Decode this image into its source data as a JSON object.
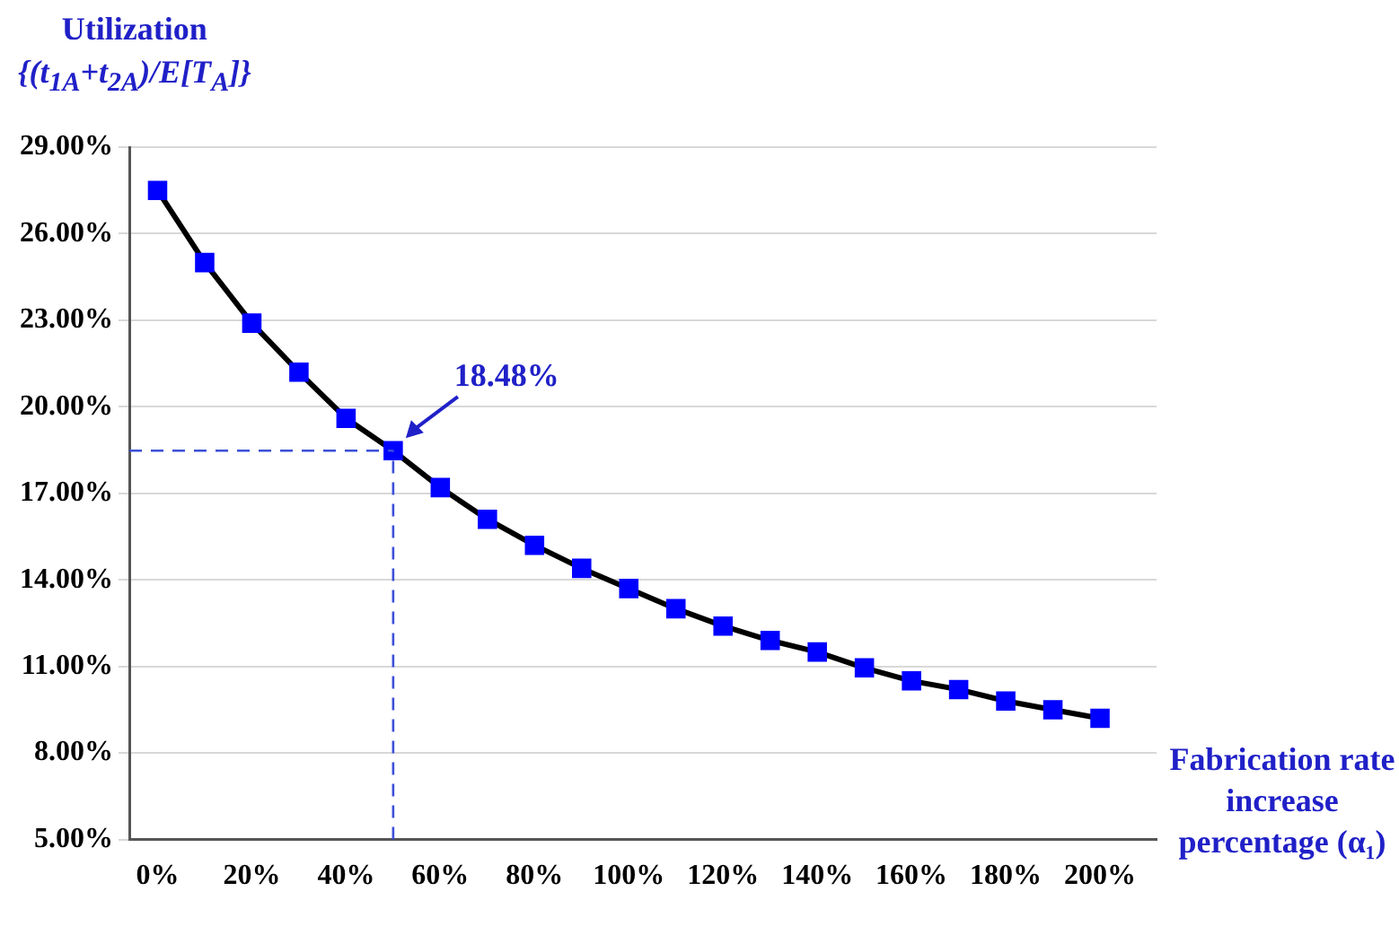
{
  "chart_data": {
    "type": "line",
    "ylabel": "Utilization {(t$_{1A}$+t$_{2A}$)/E[T$_{A}$]}",
    "xlabel": "Fabrication rate increase percentage (α₁)",
    "x": [
      0,
      10,
      20,
      30,
      40,
      50,
      60,
      70,
      80,
      90,
      100,
      110,
      120,
      130,
      140,
      150,
      160,
      170,
      180,
      190,
      200
    ],
    "series": [
      {
        "color": "#0000ff",
        "values": [
          27.5,
          25.0,
          22.9,
          21.2,
          19.6,
          18.48,
          17.2,
          16.1,
          15.2,
          14.4,
          13.7,
          13.0,
          12.4,
          11.9,
          11.5,
          10.95,
          10.5,
          10.2,
          9.8,
          9.5,
          9.2
        ]
      }
    ],
    "xlim": [
      -6,
      212
    ],
    "ylim": [
      5,
      29
    ],
    "xticks": [
      {
        "value": 0,
        "label": "0%"
      },
      {
        "value": 20,
        "label": "20%"
      },
      {
        "value": 40,
        "label": "40%"
      },
      {
        "value": 60,
        "label": "60%"
      },
      {
        "value": 80,
        "label": "80%"
      },
      {
        "value": 100,
        "label": "100%"
      },
      {
        "value": 120,
        "label": "120%"
      },
      {
        "value": 140,
        "label": "140%"
      },
      {
        "value": 160,
        "label": "160%"
      },
      {
        "value": 180,
        "label": "180%"
      },
      {
        "value": 200,
        "label": "200%"
      }
    ],
    "yticks": [
      {
        "value": 5,
        "label": "5.00%"
      },
      {
        "value": 8,
        "label": "8.00%"
      },
      {
        "value": 11,
        "label": "11.00%"
      },
      {
        "value": 14,
        "label": "14.00%"
      },
      {
        "value": 17,
        "label": "17.00%"
      },
      {
        "value": 20,
        "label": "20.00%"
      },
      {
        "value": 23,
        "label": "23.00%"
      },
      {
        "value": 26,
        "label": "26.00%"
      },
      {
        "value": 29,
        "label": "29.00%"
      }
    ],
    "ref_lines": [
      {
        "axis": "x",
        "value": 50,
        "color": "#3b4fd8",
        "line_style": "dashed"
      },
      {
        "axis": "y",
        "value": 18.48,
        "color": "#3b4fd8",
        "line_style": "dashed"
      }
    ],
    "annotations": [
      {
        "text": "18.48%",
        "x": 50,
        "y": 18.48
      }
    ],
    "grid": "y",
    "marker": "square",
    "line_style": "solid",
    "legend": false
  }
}
